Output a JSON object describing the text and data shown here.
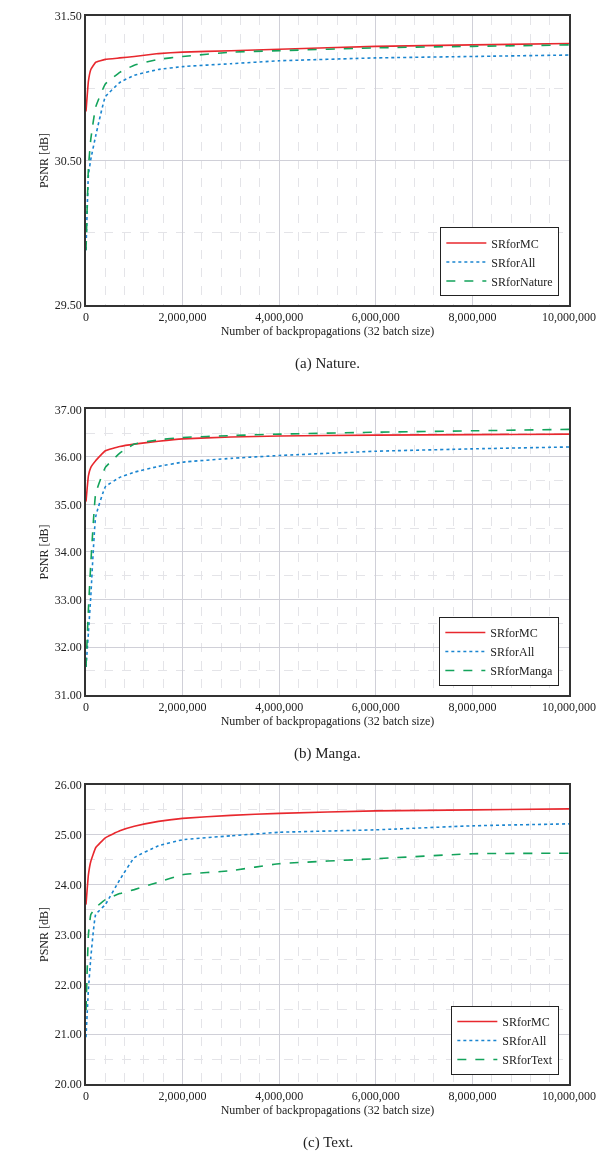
{
  "chart_data": [
    {
      "type": "line",
      "xlabel": "Number of backpropagations (32 batch size)",
      "ylabel": "PSNR [dB]",
      "annotations": [
        "(a) Nature."
      ],
      "x": [
        0,
        50000,
        100000,
        200000,
        400000,
        700000,
        1000000,
        1500000,
        2000000,
        3000000,
        4000000,
        6000000,
        8000000,
        10000000
      ],
      "series": [
        {
          "name": "SRforMC",
          "color": "#e8282e",
          "line_style": "solid",
          "values": [
            30.84,
            31.05,
            31.13,
            31.18,
            31.2,
            31.21,
            31.22,
            31.24,
            31.25,
            31.26,
            31.27,
            31.29,
            31.3,
            31.31
          ]
        },
        {
          "name": "SRforAll",
          "color": "#1a85d0",
          "line_style": "dotted",
          "values": [
            29.88,
            30.4,
            30.51,
            30.67,
            30.94,
            31.04,
            31.09,
            31.13,
            31.15,
            31.17,
            31.19,
            31.21,
            31.22,
            31.23
          ]
        },
        {
          "name": "SRforNature",
          "color": "#13a35b",
          "line_style": "dashed",
          "values": [
            29.88,
            30.45,
            30.65,
            30.87,
            31.03,
            31.11,
            31.16,
            31.2,
            31.22,
            31.25,
            31.26,
            31.28,
            31.29,
            31.3
          ]
        }
      ],
      "xlim": [
        0,
        10000000
      ],
      "ylim": [
        29.5,
        31.5
      ],
      "xticks": [
        {
          "value": 0,
          "label": "0"
        },
        {
          "value": 400000,
          "label": null
        },
        {
          "value": 800000,
          "label": null
        },
        {
          "value": 1200000,
          "label": null
        },
        {
          "value": 1600000,
          "label": null
        },
        {
          "value": 2000000,
          "label": "2,000,000"
        },
        {
          "value": 2400000,
          "label": null
        },
        {
          "value": 2800000,
          "label": null
        },
        {
          "value": 3200000,
          "label": null
        },
        {
          "value": 3600000,
          "label": null
        },
        {
          "value": 4000000,
          "label": "4,000,000"
        },
        {
          "value": 4400000,
          "label": null
        },
        {
          "value": 4800000,
          "label": null
        },
        {
          "value": 5200000,
          "label": null
        },
        {
          "value": 5600000,
          "label": null
        },
        {
          "value": 6000000,
          "label": "6,000,000"
        },
        {
          "value": 6400000,
          "label": null
        },
        {
          "value": 6800000,
          "label": null
        },
        {
          "value": 7200000,
          "label": null
        },
        {
          "value": 7600000,
          "label": null
        },
        {
          "value": 8000000,
          "label": "8,000,000"
        },
        {
          "value": 8400000,
          "label": null
        },
        {
          "value": 8800000,
          "label": null
        },
        {
          "value": 9200000,
          "label": null
        },
        {
          "value": 9600000,
          "label": null
        },
        {
          "value": 10000000,
          "label": "10,000,000"
        }
      ],
      "yticks": [
        {
          "value": 29.5,
          "label": "29.50"
        },
        {
          "value": 30.0,
          "label": null
        },
        {
          "value": 30.5,
          "label": "30.50"
        },
        {
          "value": 31.0,
          "label": null
        },
        {
          "value": 31.5,
          "label": "31.50"
        }
      ],
      "grid": true,
      "legend": "bottom right",
      "marker": "none"
    },
    {
      "type": "line",
      "xlabel": "Number of backpropagations (32 batch size)",
      "ylabel": "PSNR [dB]",
      "annotations": [
        "(b) Manga."
      ],
      "x": [
        0,
        50000,
        100000,
        200000,
        400000,
        700000,
        1000000,
        1500000,
        2000000,
        3000000,
        4000000,
        6000000,
        8000000,
        10000000
      ],
      "series": [
        {
          "name": "SRforMC",
          "color": "#e8282e",
          "line_style": "solid",
          "values": [
            35.06,
            35.6,
            35.78,
            35.92,
            36.13,
            36.22,
            36.27,
            36.33,
            36.38,
            36.42,
            36.44,
            36.46,
            36.47,
            36.48
          ]
        },
        {
          "name": "SRforAll",
          "color": "#1a85d0",
          "line_style": "dotted",
          "values": [
            31.58,
            32.3,
            33.08,
            34.74,
            35.37,
            35.57,
            35.68,
            35.8,
            35.89,
            35.97,
            36.03,
            36.12,
            36.17,
            36.21
          ]
        },
        {
          "name": "SRforManga",
          "color": "#13a35b",
          "line_style": "dashed",
          "values": [
            31.58,
            32.8,
            33.77,
            35.23,
            35.78,
            36.08,
            36.27,
            36.36,
            36.41,
            36.45,
            36.48,
            36.52,
            36.55,
            36.58
          ]
        }
      ],
      "xlim": [
        0,
        10000000
      ],
      "ylim": [
        31,
        37
      ],
      "xticks": [
        {
          "value": 0,
          "label": "0"
        },
        {
          "value": 400000,
          "label": null
        },
        {
          "value": 800000,
          "label": null
        },
        {
          "value": 1200000,
          "label": null
        },
        {
          "value": 1600000,
          "label": null
        },
        {
          "value": 2000000,
          "label": "2,000,000"
        },
        {
          "value": 2400000,
          "label": null
        },
        {
          "value": 2800000,
          "label": null
        },
        {
          "value": 3200000,
          "label": null
        },
        {
          "value": 3600000,
          "label": null
        },
        {
          "value": 4000000,
          "label": "4,000,000"
        },
        {
          "value": 4400000,
          "label": null
        },
        {
          "value": 4800000,
          "label": null
        },
        {
          "value": 5200000,
          "label": null
        },
        {
          "value": 5600000,
          "label": null
        },
        {
          "value": 6000000,
          "label": "6,000,000"
        },
        {
          "value": 6400000,
          "label": null
        },
        {
          "value": 6800000,
          "label": null
        },
        {
          "value": 7200000,
          "label": null
        },
        {
          "value": 7600000,
          "label": null
        },
        {
          "value": 8000000,
          "label": "8,000,000"
        },
        {
          "value": 8400000,
          "label": null
        },
        {
          "value": 8800000,
          "label": null
        },
        {
          "value": 9200000,
          "label": null
        },
        {
          "value": 9600000,
          "label": null
        },
        {
          "value": 10000000,
          "label": "10,000,000"
        }
      ],
      "yticks": [
        {
          "value": 31,
          "label": "31.00"
        },
        {
          "value": 31.5,
          "label": null
        },
        {
          "value": 32,
          "label": "32.00"
        },
        {
          "value": 32.5,
          "label": null
        },
        {
          "value": 33,
          "label": "33.00"
        },
        {
          "value": 33.5,
          "label": null
        },
        {
          "value": 34,
          "label": "34.00"
        },
        {
          "value": 34.5,
          "label": null
        },
        {
          "value": 35,
          "label": "35.00"
        },
        {
          "value": 35.5,
          "label": null
        },
        {
          "value": 36,
          "label": "36.00"
        },
        {
          "value": 36.5,
          "label": null
        },
        {
          "value": 37,
          "label": "37.00"
        }
      ],
      "grid": true,
      "legend": "bottom right",
      "marker": "none"
    },
    {
      "type": "line",
      "xlabel": "Number of backpropagations (32 batch size)",
      "ylabel": "PSNR [dB]",
      "annotations": [
        "(c) Text."
      ],
      "x": [
        0,
        50000,
        100000,
        200000,
        400000,
        700000,
        1000000,
        1500000,
        2000000,
        3000000,
        4000000,
        6000000,
        8000000,
        10000000
      ],
      "series": [
        {
          "name": "SRforMC",
          "color": "#e8282e",
          "line_style": "solid",
          "values": [
            23.6,
            24.2,
            24.47,
            24.74,
            24.94,
            25.08,
            25.17,
            25.27,
            25.33,
            25.39,
            25.43,
            25.48,
            25.5,
            25.52
          ]
        },
        {
          "name": "SRforAll",
          "color": "#1a85d0",
          "line_style": "dotted",
          "values": [
            20.94,
            21.9,
            22.54,
            23.4,
            23.6,
            24.1,
            24.54,
            24.78,
            24.9,
            24.98,
            25.05,
            25.1,
            25.18,
            25.22
          ]
        },
        {
          "name": "SRforText",
          "color": "#13a35b",
          "line_style": "dashed",
          "values": [
            21.48,
            23.0,
            23.4,
            23.54,
            23.7,
            23.82,
            23.9,
            24.05,
            24.2,
            24.28,
            24.42,
            24.52,
            24.62,
            24.63
          ]
        }
      ],
      "xlim": [
        0,
        10000000
      ],
      "ylim": [
        20,
        26
      ],
      "xticks": [
        {
          "value": 0,
          "label": "0"
        },
        {
          "value": 400000,
          "label": null
        },
        {
          "value": 800000,
          "label": null
        },
        {
          "value": 1200000,
          "label": null
        },
        {
          "value": 1600000,
          "label": null
        },
        {
          "value": 2000000,
          "label": "2,000,000"
        },
        {
          "value": 2400000,
          "label": null
        },
        {
          "value": 2800000,
          "label": null
        },
        {
          "value": 3200000,
          "label": null
        },
        {
          "value": 3600000,
          "label": null
        },
        {
          "value": 4000000,
          "label": "4,000,000"
        },
        {
          "value": 4400000,
          "label": null
        },
        {
          "value": 4800000,
          "label": null
        },
        {
          "value": 5200000,
          "label": null
        },
        {
          "value": 5600000,
          "label": null
        },
        {
          "value": 6000000,
          "label": "6,000,000"
        },
        {
          "value": 6400000,
          "label": null
        },
        {
          "value": 6800000,
          "label": null
        },
        {
          "value": 7200000,
          "label": null
        },
        {
          "value": 7600000,
          "label": null
        },
        {
          "value": 8000000,
          "label": "8,000,000"
        },
        {
          "value": 8400000,
          "label": null
        },
        {
          "value": 8800000,
          "label": null
        },
        {
          "value": 9200000,
          "label": null
        },
        {
          "value": 9600000,
          "label": null
        },
        {
          "value": 10000000,
          "label": "10,000,000"
        }
      ],
      "yticks": [
        {
          "value": 20,
          "label": "20.00"
        },
        {
          "value": 20.5,
          "label": null
        },
        {
          "value": 21,
          "label": "21.00"
        },
        {
          "value": 21.5,
          "label": null
        },
        {
          "value": 22,
          "label": "22.00"
        },
        {
          "value": 22.5,
          "label": null
        },
        {
          "value": 23,
          "label": "23.00"
        },
        {
          "value": 23.5,
          "label": null
        },
        {
          "value": 24,
          "label": "24.00"
        },
        {
          "value": 24.5,
          "label": null
        },
        {
          "value": 25,
          "label": "25.00"
        },
        {
          "value": 25.5,
          "label": null
        },
        {
          "value": 26,
          "label": "26.00"
        }
      ],
      "grid": true,
      "legend": "bottom right",
      "marker": "none"
    }
  ]
}
